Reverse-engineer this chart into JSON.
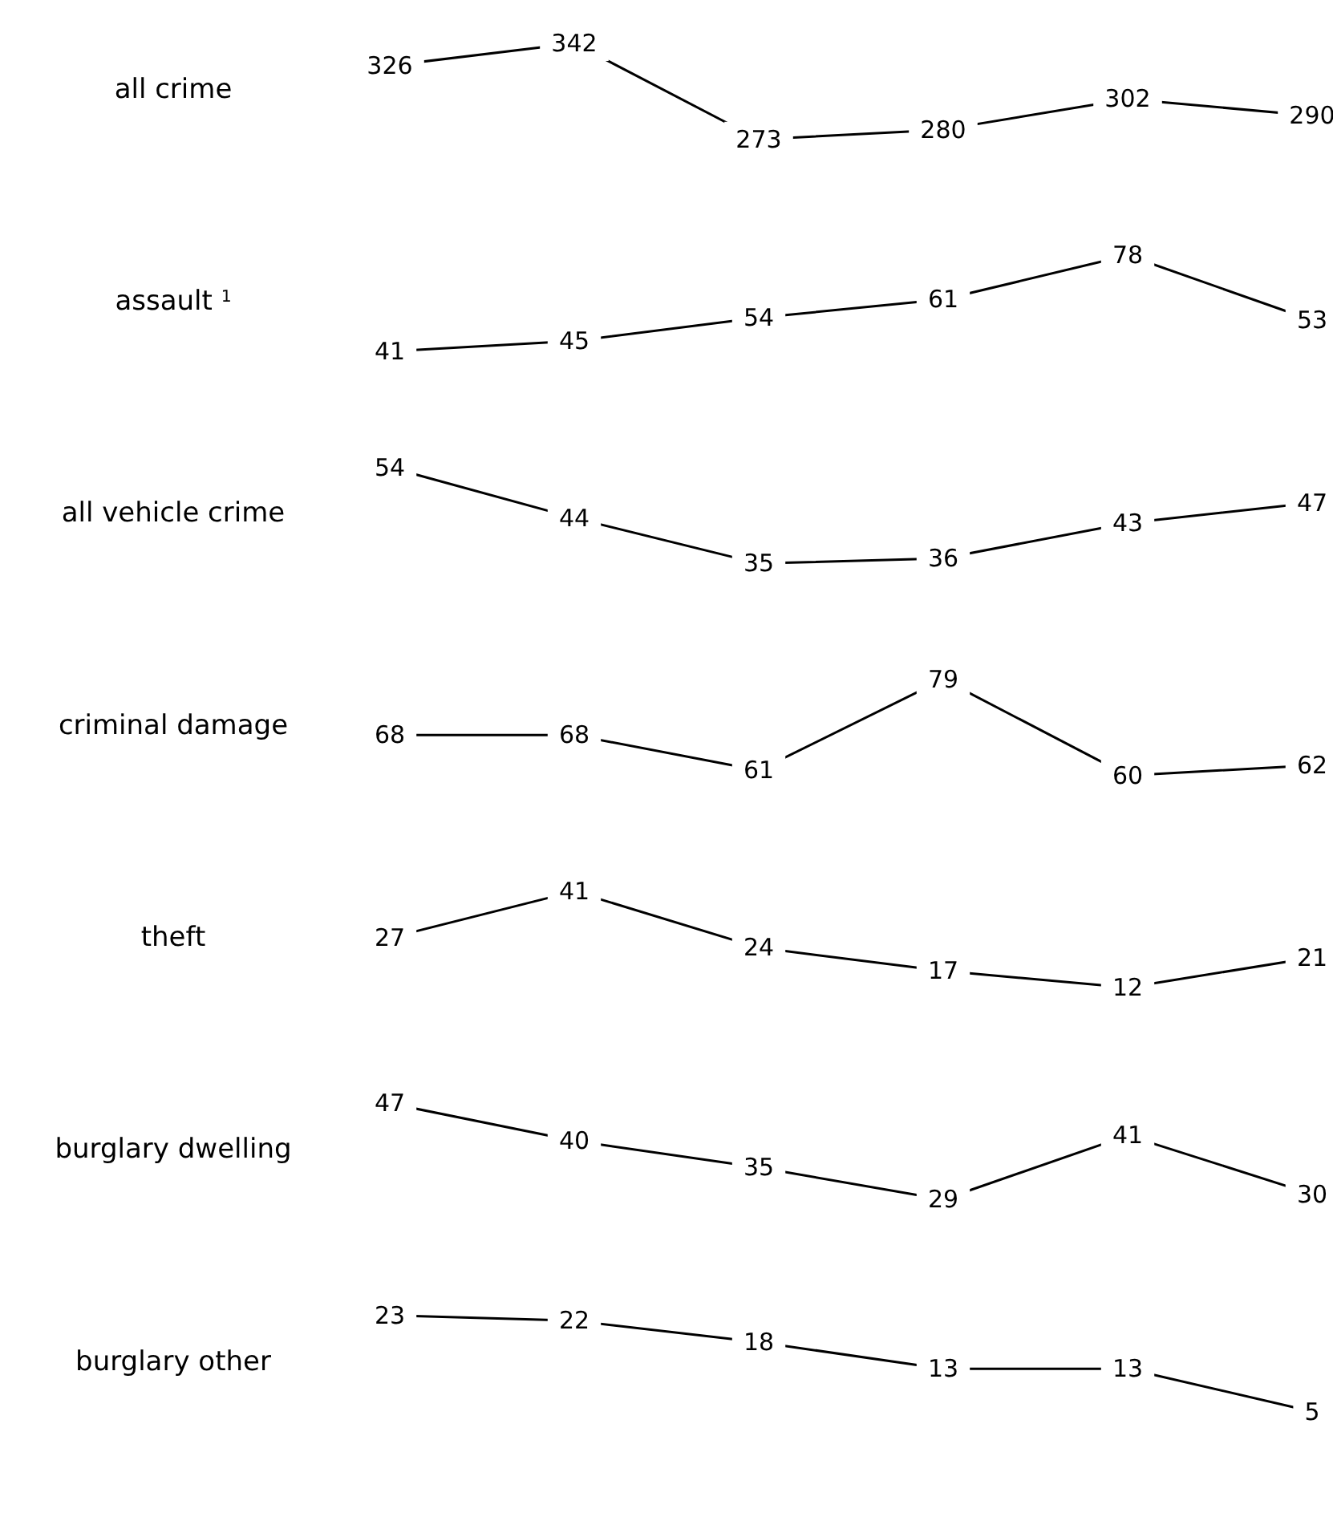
{
  "chart_data": [
    {
      "type": "line",
      "title": "all crime",
      "categories": [
        null,
        null,
        null,
        null,
        null,
        null
      ],
      "values": [
        326,
        342,
        273,
        280,
        302,
        290
      ],
      "color": "#000000",
      "data_labels": true,
      "marker": "none"
    },
    {
      "type": "line",
      "title": "assault $^{1}$",
      "categories": [
        null,
        null,
        null,
        null,
        null,
        null
      ],
      "values": [
        41,
        45,
        54,
        61,
        78,
        53
      ],
      "color": "#000000",
      "data_labels": true,
      "marker": "none"
    },
    {
      "type": "line",
      "title": "all vehicle crime",
      "categories": [
        null,
        null,
        null,
        null,
        null,
        null
      ],
      "values": [
        54,
        44,
        35,
        36,
        43,
        47
      ],
      "color": "#000000",
      "data_labels": true,
      "marker": "none"
    },
    {
      "type": "line",
      "title": "criminal damage",
      "categories": [
        null,
        null,
        null,
        null,
        null,
        null
      ],
      "values": [
        68,
        68,
        61,
        79,
        60,
        62
      ],
      "color": "#000000",
      "data_labels": true,
      "marker": "none"
    },
    {
      "type": "line",
      "title": "theft",
      "categories": [
        null,
        null,
        null,
        null,
        null,
        null
      ],
      "values": [
        27,
        41,
        24,
        17,
        12,
        21
      ],
      "color": "#000000",
      "data_labels": true,
      "marker": "none"
    },
    {
      "type": "line",
      "title": "burglary dwelling",
      "categories": [
        null,
        null,
        null,
        null,
        null,
        null
      ],
      "values": [
        47,
        40,
        35,
        29,
        41,
        30
      ],
      "color": "#000000",
      "data_labels": true,
      "marker": "none"
    },
    {
      "type": "line",
      "title": "burglary other",
      "categories": [
        null,
        null,
        null,
        null,
        null,
        null
      ],
      "values": [
        23,
        22,
        18,
        13,
        13,
        5
      ],
      "color": "#000000",
      "data_labels": true,
      "marker": "none"
    }
  ]
}
